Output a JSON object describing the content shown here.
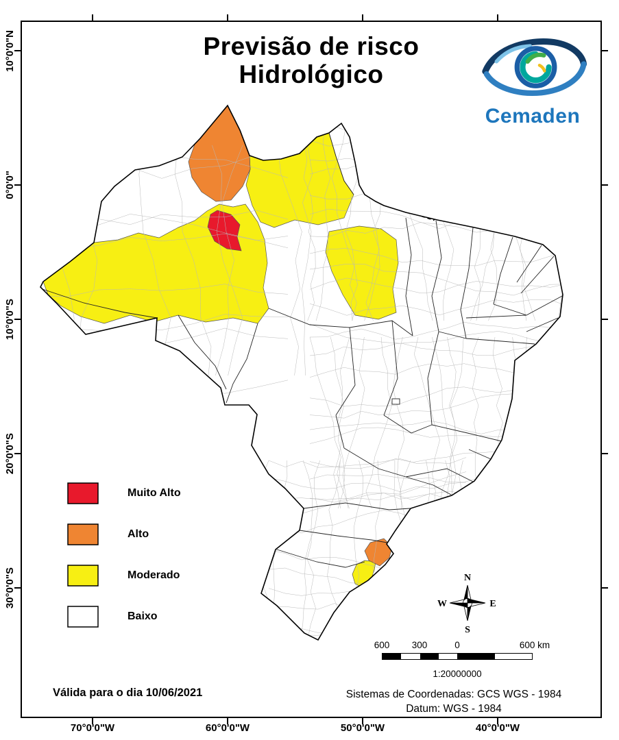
{
  "title": {
    "line1": "Previsão de risco",
    "line2": "Hidrológico"
  },
  "logo": {
    "name": "Cemaden"
  },
  "legend": {
    "items": [
      {
        "key": "muito_alto",
        "label": "Muito Alto",
        "color": "#e8192c"
      },
      {
        "key": "alto",
        "label": "Alto",
        "color": "#ef8532"
      },
      {
        "key": "moderado",
        "label": "Moderado",
        "color": "#f7ef13"
      },
      {
        "key": "baixo",
        "label": "Baixo",
        "color": "#ffffff"
      }
    ]
  },
  "map": {
    "region_colors": {
      "muito_alto": "#e8192c",
      "alto": "#ef8532",
      "moderado": "#f7ef13",
      "baixo": "#ffffff"
    }
  },
  "axes": {
    "left": [
      "10°0'0\"N",
      "0°0'0\"",
      "10°0'0\"S",
      "20°0'0\"S",
      "30°0'0\"S"
    ],
    "bottom": [
      "70°0'0\"W",
      "60°0'0\"W",
      "50°0'0\"W",
      "40°0'0\"W"
    ]
  },
  "compass": {
    "north": "N",
    "south": "S",
    "east": "E",
    "west": "W"
  },
  "scalebar": {
    "ticks": [
      "600",
      "300",
      "0",
      "600 km"
    ],
    "ratio": "1:20000000"
  },
  "footer": {
    "validity": "Válida para o dia 10/06/2021",
    "coordinate_system": "Sistemas de Coordenadas: GCS WGS - 1984",
    "datum": "Datum: WGS - 1984"
  }
}
